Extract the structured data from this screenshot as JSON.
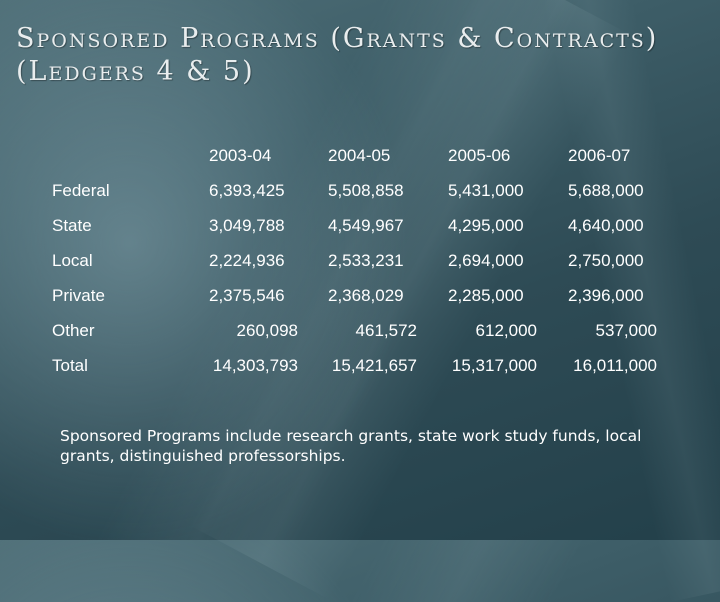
{
  "slide": {
    "title_line1": "Sponsored Programs (Grants & Contracts)",
    "title_line2": "(Ledgers 4 & 5)",
    "note": "Sponsored Programs include research grants, state work study funds, local grants, distinguished professorships."
  },
  "table": {
    "columns": [
      "2003-04",
      "2004-05",
      "2005-06",
      "2006-07"
    ],
    "rows": [
      {
        "label": "Federal",
        "values": [
          "6,393,425",
          "5,508,858",
          "5,431,000",
          "5,688,000"
        ]
      },
      {
        "label": "State",
        "values": [
          "3,049,788",
          "4,549,967",
          "4,295,000",
          "4,640,000"
        ]
      },
      {
        "label": "Local",
        "values": [
          "2,224,936",
          "2,533,231",
          "2,694,000",
          "2,750,000"
        ]
      },
      {
        "label": "Private",
        "values": [
          "2,375,546",
          "2,368,029",
          "2,285,000",
          "2,396,000"
        ]
      },
      {
        "label": "Other",
        "values": [
          "260,098",
          "461,572",
          "612,000",
          "537,000"
        ]
      },
      {
        "label": "Total",
        "values": [
          "14,303,793",
          "15,421,657",
          "15,317,000",
          "16,011,000"
        ]
      }
    ]
  }
}
